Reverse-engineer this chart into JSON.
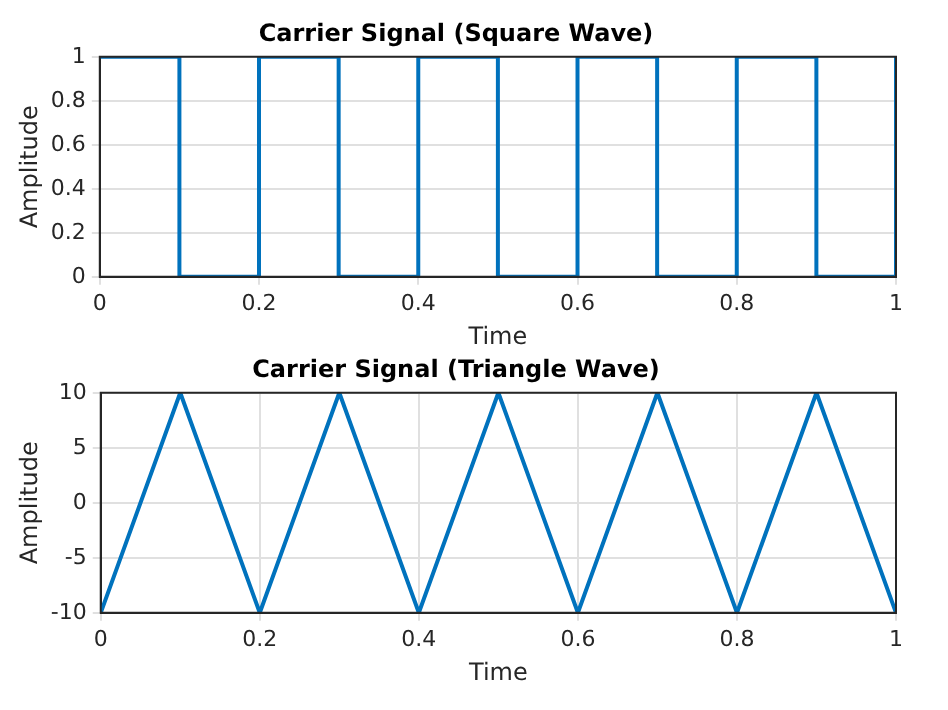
{
  "chart_data": [
    {
      "type": "step",
      "title": "Carrier Signal (Square Wave)",
      "xlabel": "Time",
      "ylabel": "Amplitude",
      "x": [
        0,
        0.1,
        0.2,
        0.3,
        0.4,
        0.5,
        0.6,
        0.7,
        0.8,
        0.9,
        1.0
      ],
      "series": [
        {
          "color": "#0072bd",
          "values": [
            1,
            0,
            1,
            0,
            1,
            0,
            1,
            0,
            1,
            0,
            1
          ]
        }
      ],
      "xlim": [
        0,
        1
      ],
      "ylim": [
        0,
        1
      ],
      "xticks": [
        0,
        0.2,
        0.4,
        0.6,
        0.8,
        1
      ],
      "yticks": [
        0,
        0.2,
        0.4,
        0.6,
        0.8,
        1
      ],
      "grid": true
    },
    {
      "type": "line",
      "title": "Carrier Signal (Triangle Wave)",
      "xlabel": "Time",
      "ylabel": "Amplitude",
      "x": [
        0,
        0.1,
        0.2,
        0.3,
        0.4,
        0.5,
        0.6,
        0.7,
        0.8,
        0.9,
        1.0
      ],
      "series": [
        {
          "color": "#0072bd",
          "values": [
            -10,
            10,
            -10,
            10,
            -10,
            10,
            -10,
            10,
            -10,
            10,
            -10
          ]
        }
      ],
      "xlim": [
        0,
        1
      ],
      "ylim": [
        -10,
        10
      ],
      "xticks": [
        0,
        0.2,
        0.4,
        0.6,
        0.8,
        1
      ],
      "yticks": [
        -10,
        -5,
        0,
        5,
        10
      ],
      "grid": true
    }
  ]
}
